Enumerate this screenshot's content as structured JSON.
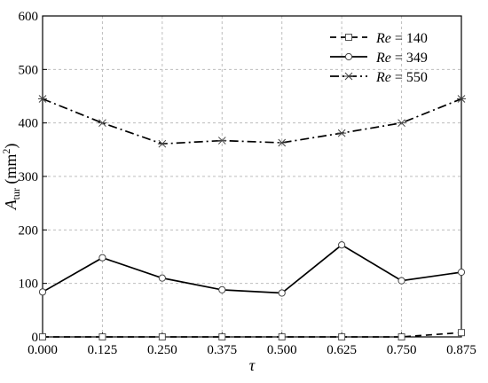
{
  "chart_data": {
    "type": "line",
    "x": [
      0.0,
      0.125,
      0.25,
      0.375,
      0.5,
      0.625,
      0.75,
      0.875
    ],
    "x_ticks": [
      "0.000",
      "0.125",
      "0.250",
      "0.375",
      "0.500",
      "0.625",
      "0.750",
      "0.875"
    ],
    "y_ticks": [
      "0",
      "100",
      "200",
      "300",
      "400",
      "500",
      "600"
    ],
    "xlabel": "τ",
    "ylabel": {
      "main": "A",
      "sub": "tur",
      "unit_open": " (mm",
      "unit_sup": "2",
      "unit_close": ")"
    },
    "xlim": [
      0,
      0.875
    ],
    "ylim": [
      0,
      600
    ],
    "grid": true,
    "legend_position": "top-right",
    "series": [
      {
        "name": "Re = 140",
        "name_italic": "Re",
        "name_rest": " = 140",
        "dash": "dash",
        "marker": "square",
        "values": [
          0,
          0,
          0,
          0,
          0,
          0,
          0,
          8
        ]
      },
      {
        "name": "Re = 349",
        "name_italic": "Re",
        "name_rest": " = 349",
        "dash": "solid",
        "marker": "circle",
        "values": [
          84,
          148,
          110,
          88,
          82,
          172,
          105,
          121
        ]
      },
      {
        "name": "Re = 550",
        "name_italic": "Re",
        "name_rest": " = 550",
        "dash": "dashdot",
        "marker": "star",
        "values": [
          445,
          400,
          361,
          367,
          363,
          381,
          400,
          445
        ]
      }
    ]
  }
}
